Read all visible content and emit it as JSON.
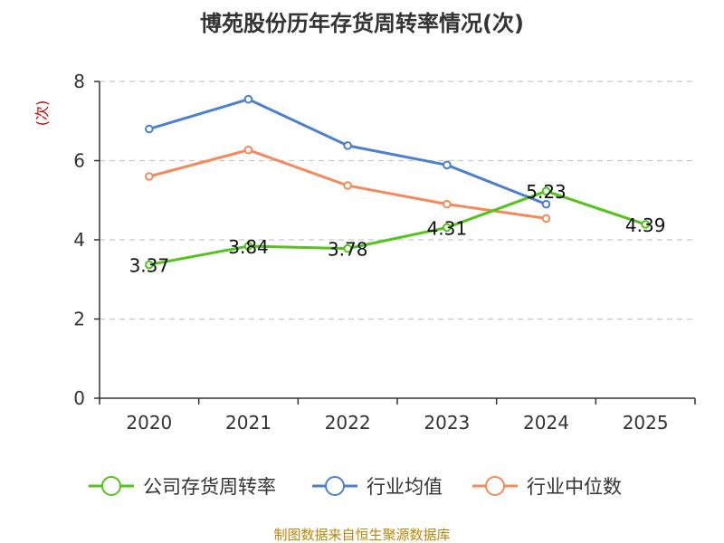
{
  "chart_data": {
    "type": "line",
    "title": "博苑股份历年存货周转率情况(次)",
    "ylabel": "(次)",
    "xlabel": "",
    "ylim": [
      0,
      8
    ],
    "yticks": [
      0,
      2,
      4,
      6,
      8
    ],
    "categories": [
      "2020",
      "2021",
      "2022",
      "2023",
      "2024",
      "2025"
    ],
    "grid": true,
    "legend_position": "bottom",
    "series": [
      {
        "name": "公司存货周转率",
        "color": "#52c41a",
        "values": [
          3.37,
          3.84,
          3.78,
          4.31,
          5.23,
          4.39
        ],
        "labels": [
          "3.37",
          "3.84",
          "3.78",
          "4.31",
          "5.23",
          "4.39"
        ]
      },
      {
        "name": "行业均值",
        "color": "#4a7fd4",
        "values": [
          6.8,
          7.55,
          6.38,
          5.89,
          4.9,
          null
        ]
      },
      {
        "name": "行业中位数",
        "color": "#f5895a",
        "values": [
          5.6,
          6.27,
          5.37,
          4.9,
          4.54,
          null
        ]
      }
    ],
    "source": "制图数据来自恒生聚源数据库"
  }
}
